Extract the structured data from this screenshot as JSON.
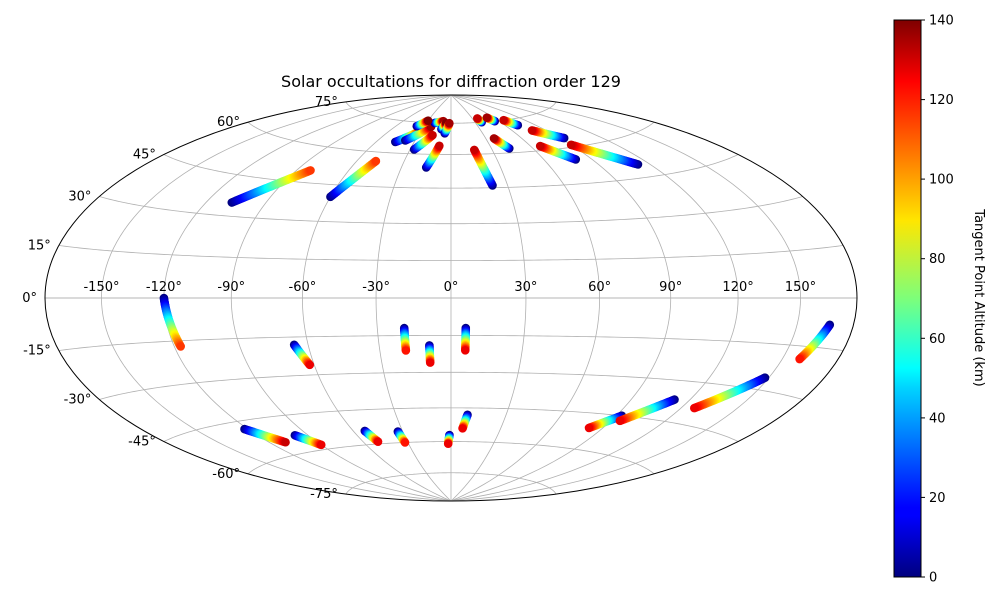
{
  "chart_data": {
    "type": "scatter",
    "projection": "hammer",
    "title": "Solar occultations for diffraction order 129",
    "lon_ticks": [
      "-150°",
      "-120°",
      "-90°",
      "-60°",
      "-30°",
      "0°",
      "30°",
      "60°",
      "90°",
      "120°",
      "150°"
    ],
    "lon_tick_values": [
      -150,
      -120,
      -90,
      -60,
      -30,
      0,
      30,
      60,
      90,
      120,
      150
    ],
    "lat_ticks": [
      "-75°",
      "-60°",
      "-45°",
      "-30°",
      "-15°",
      "0°",
      "15°",
      "30°",
      "45°",
      "60°",
      "75°"
    ],
    "lat_tick_values": [
      -75,
      -60,
      -45,
      -30,
      -15,
      0,
      15,
      30,
      45,
      60,
      75
    ],
    "grid": true,
    "colormap": "jet",
    "colorbar": {
      "label": "Tangent Point Altitude (km)",
      "range": [
        0,
        140
      ],
      "ticks": [
        "0",
        "20",
        "40",
        "60",
        "80",
        "100",
        "120",
        "140"
      ],
      "tick_values": [
        0,
        20,
        40,
        60,
        80,
        100,
        120,
        140
      ]
    },
    "tracks": [
      {
        "start": [
          -107,
          35
        ],
        "end": [
          -82,
          50
        ],
        "alt": [
          0,
          115
        ]
      },
      {
        "start": [
          -120,
          0
        ],
        "end": [
          -117,
          -17
        ],
        "alt": [
          0,
          115
        ]
      },
      {
        "start": [
          -60,
          40
        ],
        "end": [
          -48,
          56
        ],
        "alt": [
          0,
          115
        ]
      },
      {
        "start": [
          -45,
          65
        ],
        "end": [
          -30,
          71
        ],
        "alt": [
          0,
          130
        ]
      },
      {
        "start": [
          -38,
          66
        ],
        "end": [
          -22,
          73
        ],
        "alt": [
          0,
          135
        ]
      },
      {
        "start": [
          -27,
          62
        ],
        "end": [
          -17,
          69
        ],
        "alt": [
          0,
          130
        ]
      },
      {
        "start": [
          -15,
          54
        ],
        "end": [
          -9,
          64
        ],
        "alt": [
          0,
          130
        ]
      },
      {
        "start": [
          -20,
          75
        ],
        "end": [
          -10,
          76
        ],
        "alt": [
          0,
          135
        ]
      },
      {
        "start": [
          -10,
          72
        ],
        "end": [
          -6,
          75
        ],
        "alt": [
          0,
          140
        ]
      },
      {
        "start": [
          -6,
          70
        ],
        "end": [
          -2,
          75
        ],
        "alt": [
          0,
          135
        ]
      },
      {
        "start": [
          -38,
          73
        ],
        "end": [
          -30,
          76
        ],
        "alt": [
          0,
          140
        ]
      },
      {
        "start": [
          22,
          46
        ],
        "end": [
          17,
          62
        ],
        "alt": [
          0,
          130
        ]
      },
      {
        "start": [
          43,
          62
        ],
        "end": [
          37,
          67
        ],
        "alt": [
          0,
          135
        ]
      },
      {
        "start": [
          38,
          75
        ],
        "end": [
          37,
          77
        ],
        "alt": [
          0,
          130
        ]
      },
      {
        "start": [
          55,
          75
        ],
        "end": [
          51,
          77
        ],
        "alt": [
          0,
          135
        ]
      },
      {
        "start": [
          73,
          72
        ],
        "end": [
          67,
          75
        ],
        "alt": [
          0,
          130
        ]
      },
      {
        "start": [
          93,
          64
        ],
        "end": [
          78,
          69
        ],
        "alt": [
          0,
          130
        ]
      },
      {
        "start": [
          80,
          55
        ],
        "end": [
          67,
          62
        ],
        "alt": [
          0,
          130
        ]
      },
      {
        "start": [
          113,
          50
        ],
        "end": [
          90,
          61
        ],
        "alt": [
          0,
          130
        ]
      },
      {
        "start": [
          -66,
          -18
        ],
        "end": [
          -62,
          -26
        ],
        "alt": [
          0,
          125
        ]
      },
      {
        "start": [
          -19,
          -12
        ],
        "end": [
          -19,
          -21
        ],
        "alt": [
          0,
          120
        ]
      },
      {
        "start": [
          -9,
          -19
        ],
        "end": [
          -9,
          -26
        ],
        "alt": [
          0,
          125
        ]
      },
      {
        "start": [
          6,
          -12
        ],
        "end": [
          6,
          -21
        ],
        "alt": [
          0,
          125
        ]
      },
      {
        "start": [
          -122,
          -48
        ],
        "end": [
          -110,
          -55
        ],
        "alt": [
          0,
          130
        ]
      },
      {
        "start": [
          -98,
          -53
        ],
        "end": [
          -90,
          -58
        ],
        "alt": [
          0,
          125
        ]
      },
      {
        "start": [
          -53,
          -54
        ],
        "end": [
          -50,
          -59
        ],
        "alt": [
          0,
          125
        ]
      },
      {
        "start": [
          -33,
          -55
        ],
        "end": [
          -32,
          -60
        ],
        "alt": [
          0,
          120
        ]
      },
      {
        "start": [
          -1,
          -57
        ],
        "end": [
          -2,
          -61
        ],
        "alt": [
          0,
          125
        ]
      },
      {
        "start": [
          9,
          -48
        ],
        "end": [
          7,
          -54
        ],
        "alt": [
          0,
          125
        ]
      },
      {
        "start": [
          93,
          -45
        ],
        "end": [
          82,
          -51
        ],
        "alt": [
          0,
          125
        ]
      },
      {
        "start": [
          112,
          -37
        ],
        "end": [
          95,
          -47
        ],
        "alt": [
          0,
          125
        ]
      },
      {
        "start": [
          148,
          -26
        ],
        "end": [
          127,
          -39
        ],
        "alt": [
          0,
          125
        ]
      },
      {
        "start": [
          167,
          -8
        ],
        "end": [
          159,
          -19
        ],
        "alt": [
          0,
          120
        ]
      }
    ]
  }
}
